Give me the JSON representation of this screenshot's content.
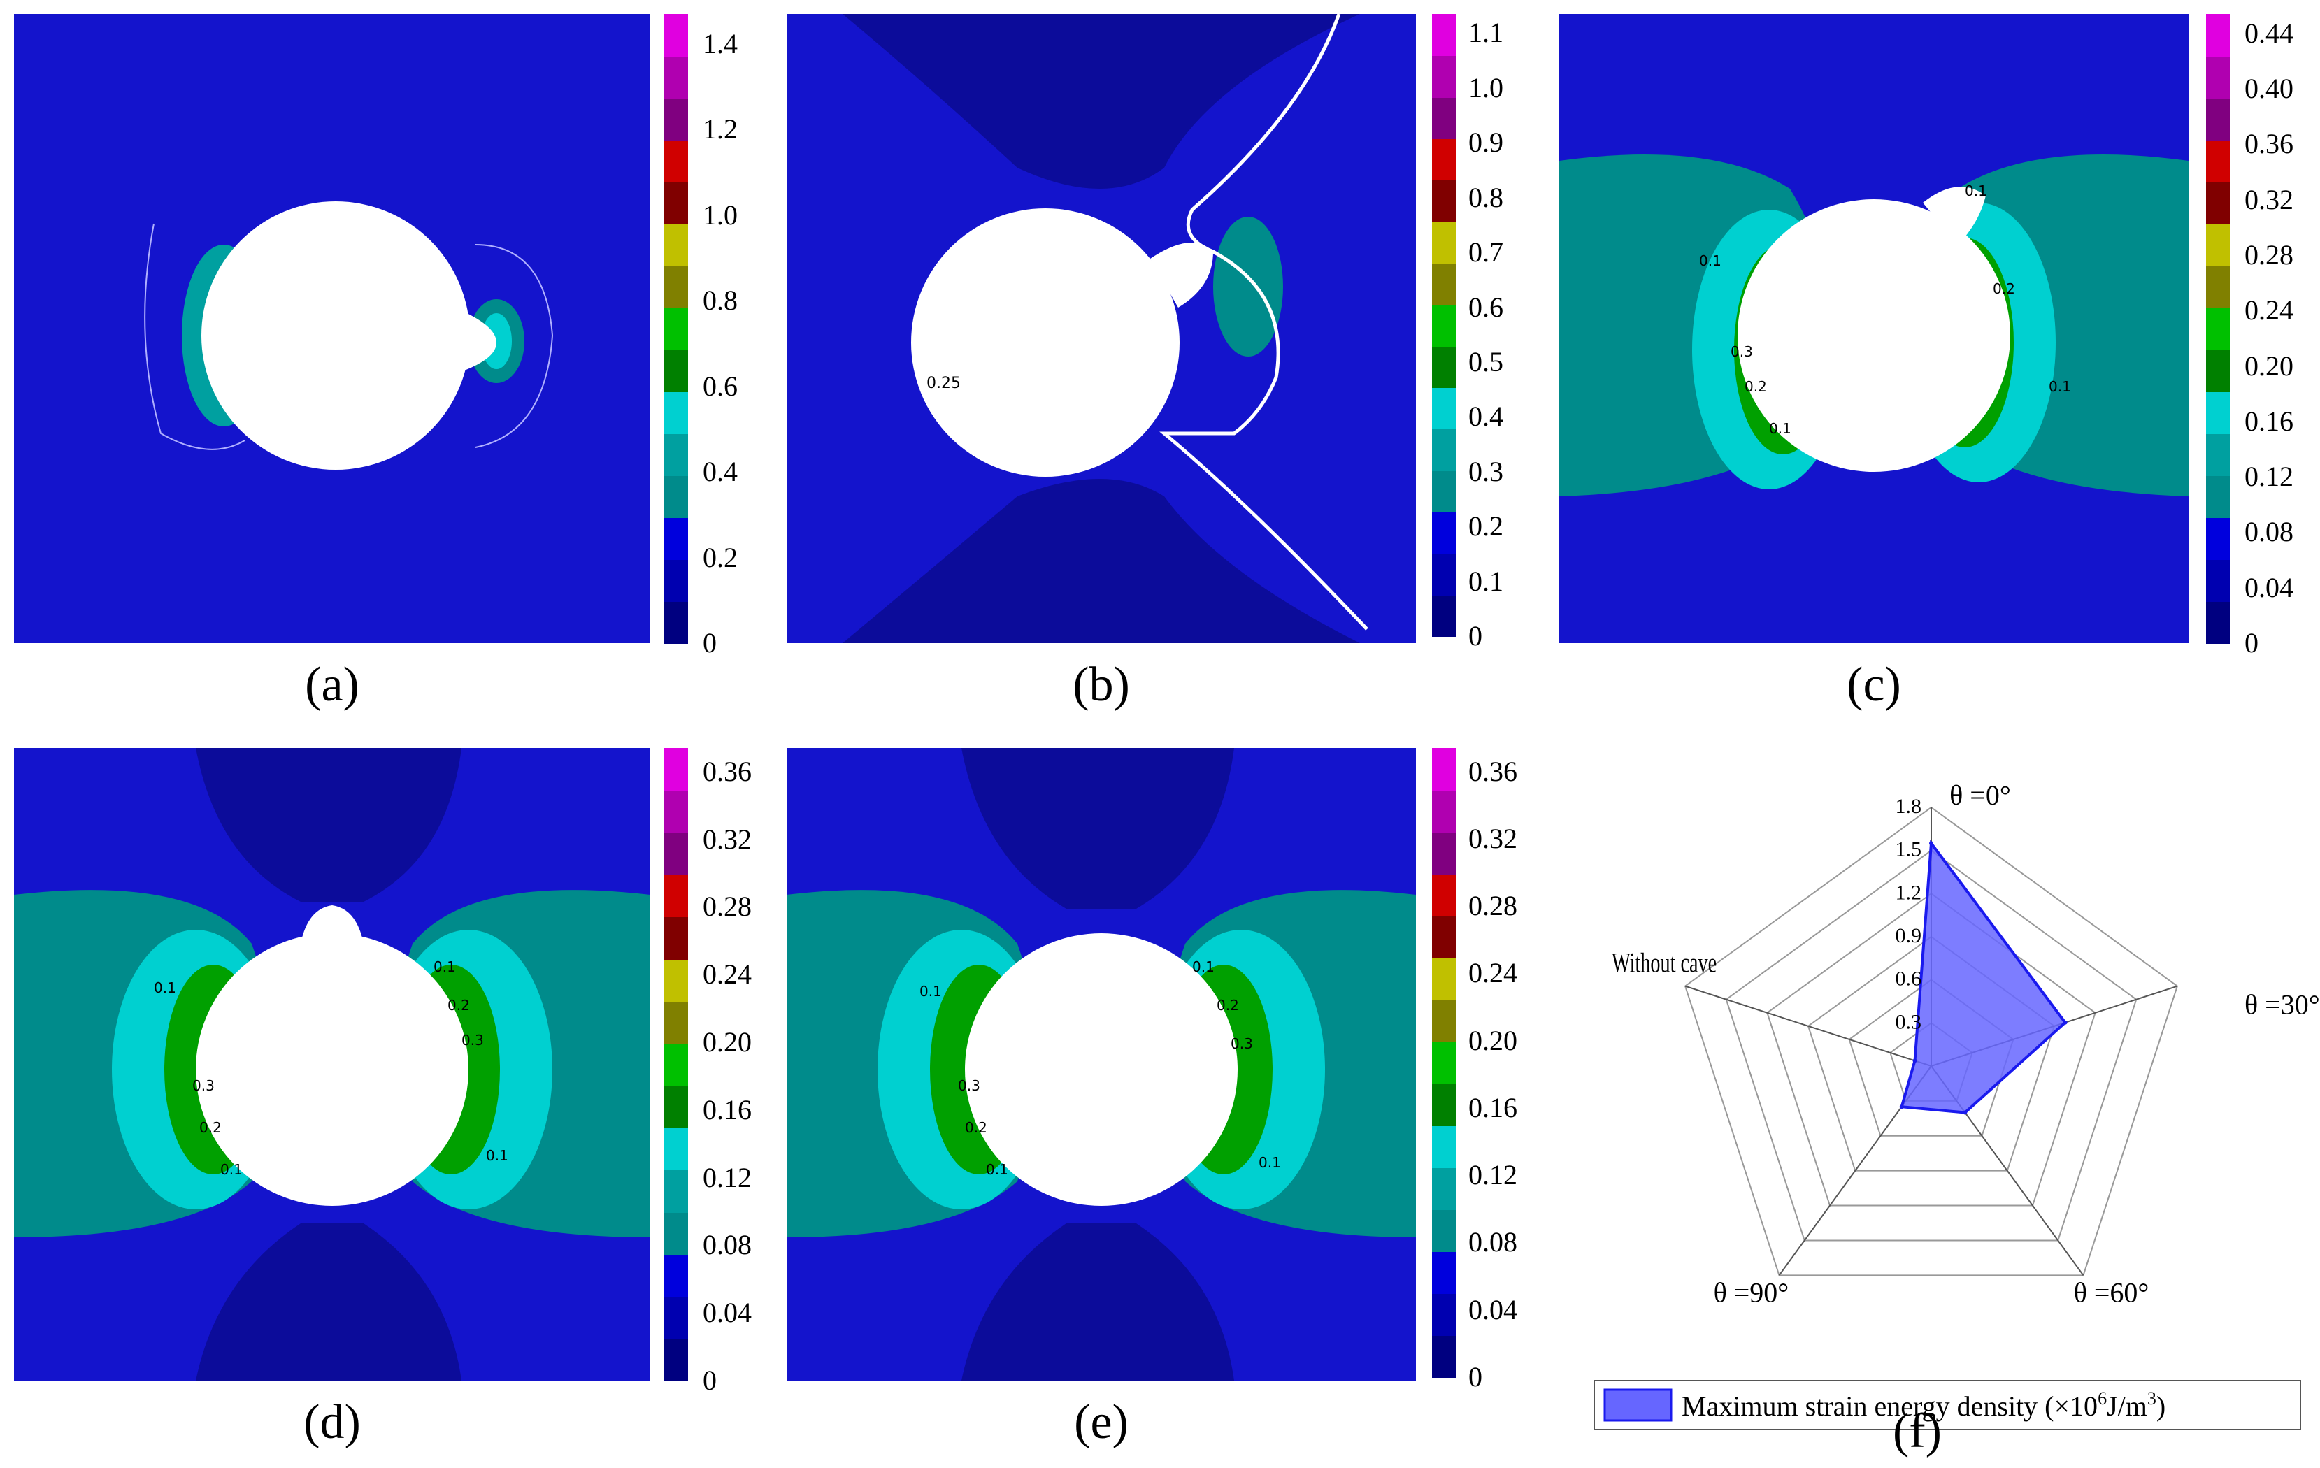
{
  "colors": {
    "plot_background": "#1414cc",
    "dark_region": "#0c0c9a",
    "teal_region": "#008b8b",
    "hole": "#ffffff",
    "radar_fill": "#6666ff",
    "radar_stroke": "#1a1aee"
  },
  "colorbar_levels": [
    "#000080",
    "#0000b0",
    "#0000dd",
    "#008b8b",
    "#00a0a0",
    "#00d0d0",
    "#008000",
    "#00c000",
    "#808000",
    "#c0c000",
    "#800000",
    "#d00000",
    "#800080",
    "#b000b0",
    "#e000e0"
  ],
  "panels": [
    {
      "label": "(a)",
      "colorbar_ticks": [
        "0",
        "0.2",
        "0.4",
        "0.6",
        "0.8",
        "1.0",
        "1.2",
        "1.4"
      ],
      "contour_labels": []
    },
    {
      "label": "(b)",
      "colorbar_ticks": [
        "0",
        "0.1",
        "0.2",
        "0.3",
        "0.4",
        "0.5",
        "0.6",
        "0.7",
        "0.8",
        "0.9",
        "1.0",
        "1.1"
      ],
      "contour_labels": [
        "0.25"
      ]
    },
    {
      "label": "(c)",
      "colorbar_ticks": [
        "0",
        "0.04",
        "0.08",
        "0.12",
        "0.16",
        "0.20",
        "0.24",
        "0.28",
        "0.32",
        "0.36",
        "0.40",
        "0.44"
      ],
      "contour_labels": [
        "0.1",
        "0.1",
        "0.1",
        "0.1",
        "0.2",
        "0.2",
        "0.3"
      ]
    },
    {
      "label": "(d)",
      "colorbar_ticks": [
        "0",
        "0.04",
        "0.08",
        "0.12",
        "0.16",
        "0.20",
        "0.24",
        "0.28",
        "0.32",
        "0.36"
      ],
      "contour_labels": [
        "0.1",
        "0.1",
        "0.1",
        "0.1",
        "0.2",
        "0.2",
        "0.3",
        "0.3"
      ]
    },
    {
      "label": "(e)",
      "colorbar_ticks": [
        "0",
        "0.04",
        "0.08",
        "0.12",
        "0.16",
        "0.20",
        "0.24",
        "0.28",
        "0.32",
        "0.36"
      ],
      "contour_labels": [
        "0.1",
        "0.1",
        "0.1",
        "0.1",
        "0.2",
        "0.2",
        "0.3",
        "0.3"
      ]
    }
  ],
  "chart_data": {
    "type": "radar",
    "label": "(f)",
    "axes": [
      "θ =0°",
      "θ =30°",
      "θ =60°",
      "θ =90°",
      "Without cave"
    ],
    "values": [
      1.55,
      0.98,
      0.4,
      0.35,
      0.12
    ],
    "radial_ticks": [
      "0.3",
      "0.6",
      "0.9",
      "1.2",
      "1.5",
      "1.8"
    ],
    "rmax": 1.8,
    "legend": {
      "text": "Maximum strain energy density (×10",
      "sup1": "6",
      "mid": "J/m",
      "sup2": "3",
      "end": ")"
    }
  }
}
